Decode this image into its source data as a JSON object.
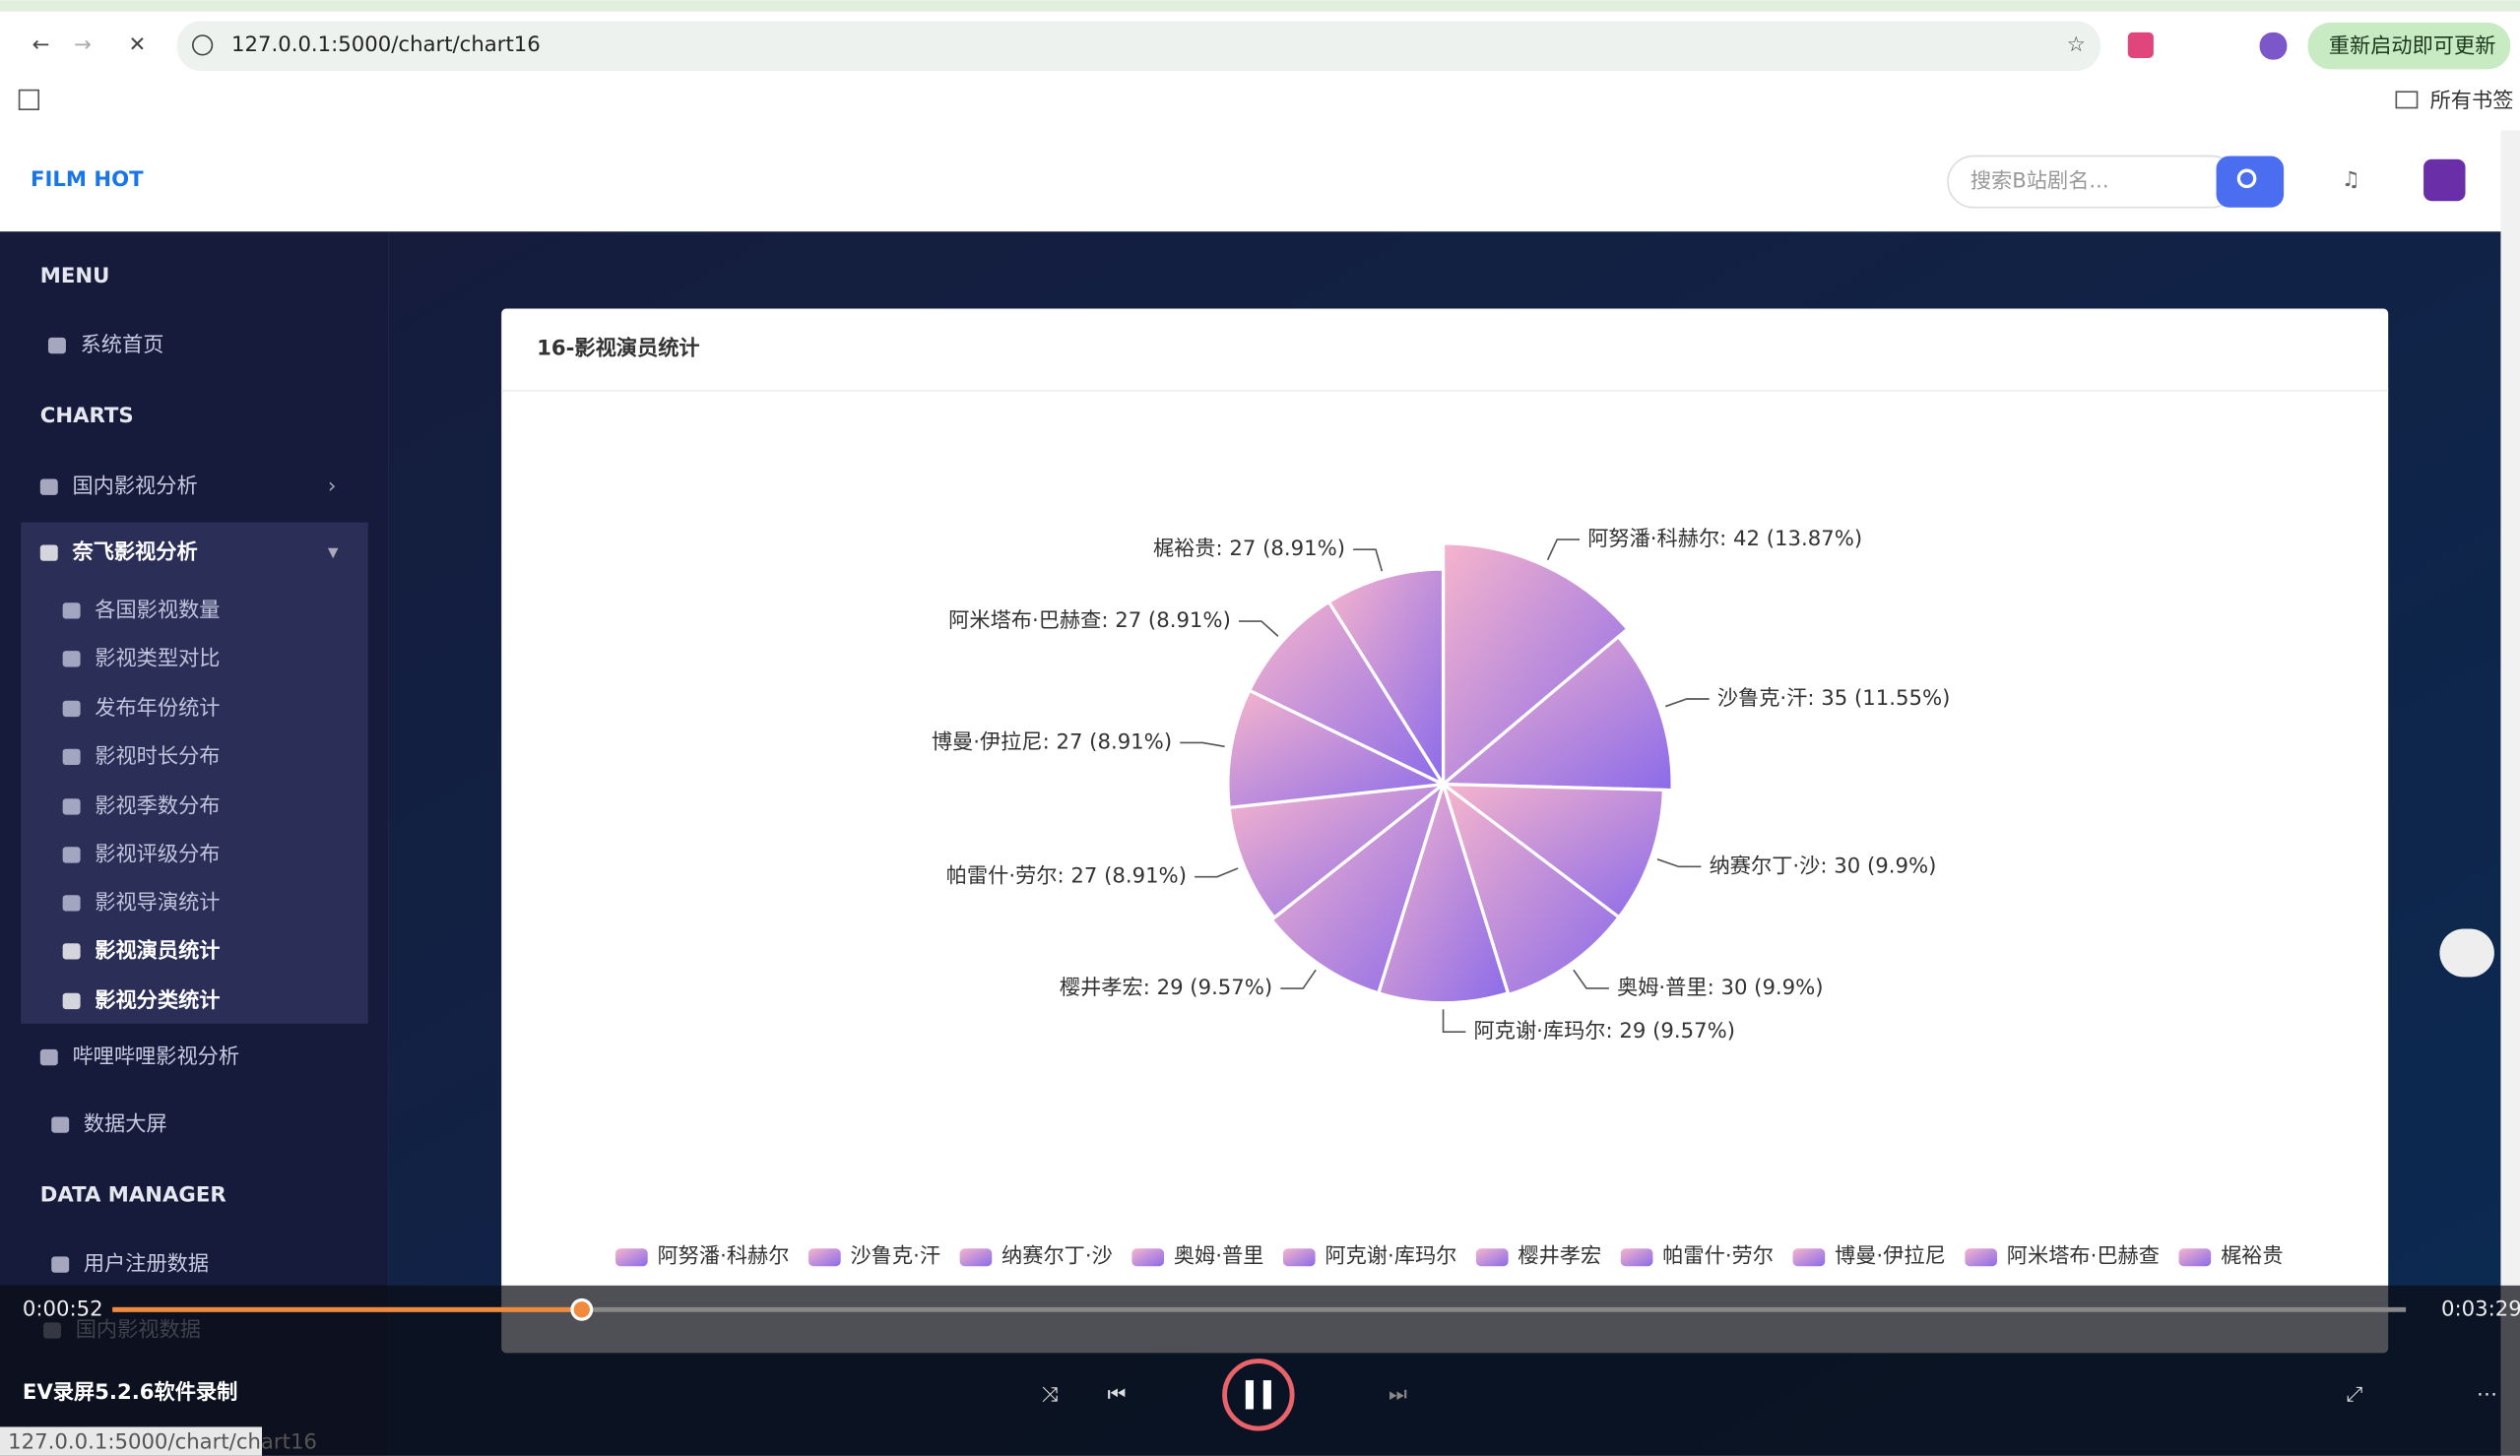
{
  "browser": {
    "url": "127.0.0.1:5000/chart/chart16",
    "bookmarks": "所有书签",
    "update_button": "重新启动即可更新"
  },
  "header": {
    "logo": "FILM HOT",
    "search_placeholder": "搜索B站剧名..."
  },
  "sidebar": {
    "menu": "MENU",
    "home": "系统首页",
    "charts": "CHARTS",
    "groups": [
      "国内影视分析",
      "奈飞影视分析"
    ],
    "sub": [
      "各国影视数量",
      "影视类型对比",
      "发布年份统计",
      "影视时长分布",
      "影视季数分布",
      "影视评级分布",
      "影视导演统计",
      "影视演员统计",
      "影视分类统计"
    ],
    "more": [
      "哔哩哔哩影视分析",
      "数据大屏"
    ],
    "data_manager": "DATA MANAGER",
    "data_items": [
      "用户注册数据",
      "国内影视数据"
    ]
  },
  "card_title": "16-影视演员统计",
  "player": {
    "time_current": "0:00:52",
    "time_total": "0:03:29",
    "watermark": "EV录屏5.2.6软件录制"
  },
  "status_url": "127.0.0.1:5000/chart/chart16",
  "chart_data": {
    "type": "pie",
    "rose": "radius",
    "categories": [
      "阿努潘·科赫尔",
      "沙鲁克·汗",
      "纳赛尔丁·沙",
      "奥姆·普里",
      "阿克谢·库玛尔",
      "樱井孝宏",
      "帕雷什·劳尔",
      "博曼·伊拉尼",
      "阿米塔布·巴赫查",
      "梶裕贵"
    ],
    "values": [
      42,
      35,
      30,
      30,
      29,
      29,
      27,
      27,
      27,
      27
    ],
    "value_labels": [
      "阿努潘·科赫尔: 42 (13.87%)",
      "沙鲁克·汗: 35 (11.55%)",
      "纳赛尔丁·沙: 30 (9.9%)",
      "奥姆·普里: 30 (9.9%)",
      "阿克谢·库玛尔: 29 (9.57%)",
      "樱井孝宏: 29 (9.57%)",
      "帕雷什·劳尔: 27 (8.91%)",
      "博曼·伊拉尼: 27 (8.91%)",
      "阿米塔布·巴赫查: 27 (8.91%)",
      "梶裕贵: 27 (8.91%)"
    ],
    "gradient": [
      "#f6b4cc",
      "#8b6be9"
    ]
  }
}
